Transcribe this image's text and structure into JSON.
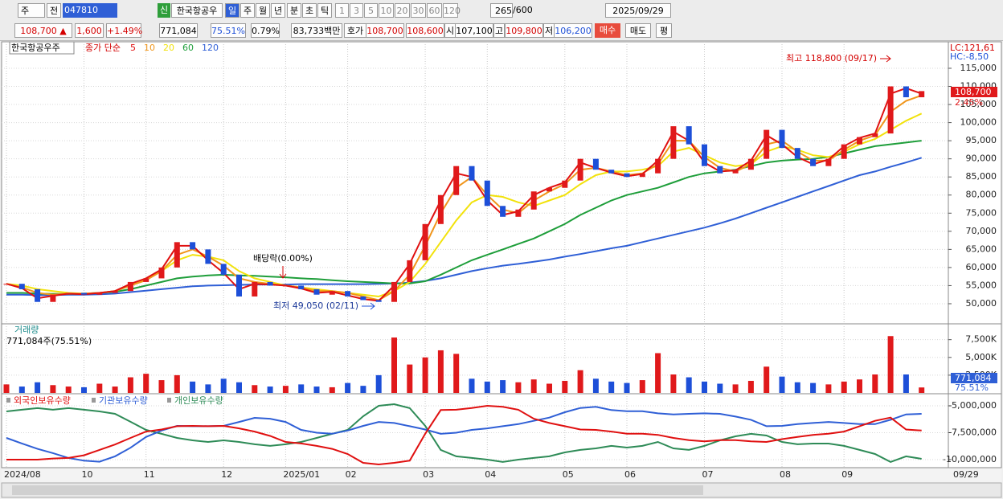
{
  "toolbar": {
    "market": "주",
    "prev": "전",
    "code": "047810",
    "new_badge": "신",
    "name": "한국항공우",
    "periods": [
      "일",
      "주",
      "월",
      "년",
      "분",
      "초",
      "틱"
    ],
    "intervals": [
      "1",
      "3",
      "5",
      "10",
      "20",
      "30",
      "60",
      "120"
    ],
    "count": "265",
    "max_count": "/600",
    "date": "2025/09/29"
  },
  "quote": {
    "price": "108,700 ▲",
    "change": "1,600",
    "change_pct": "+1.49%",
    "volume": "771,084",
    "volume_ratio": "75.51%",
    "turnover_rate": "0.79%",
    "amount": "83,733백만",
    "bid_ask_label": "호가",
    "ask": "108,700",
    "bid": "108,600",
    "open_label": "시",
    "open": "107,100",
    "high_label": "고",
    "high": "109,800",
    "low_label": "저",
    "low": "106,200",
    "buy": "매수",
    "sell": "매도",
    "avg": "평"
  },
  "chart_data": [
    {
      "type": "candlestick",
      "title": "한국항공우주",
      "ma_label": "종가 단순",
      "categories": [
        "2024/08",
        null,
        null,
        null,
        null,
        "10",
        null,
        null,
        null,
        "11",
        null,
        null,
        null,
        null,
        "12",
        null,
        null,
        null,
        "2025/01",
        null,
        null,
        null,
        "02",
        null,
        null,
        null,
        null,
        "03",
        null,
        null,
        null,
        "04",
        null,
        null,
        null,
        null,
        "05",
        null,
        null,
        null,
        "06",
        null,
        null,
        null,
        null,
        "07",
        null,
        null,
        null,
        null,
        "08",
        null,
        null,
        null,
        "09",
        null,
        null,
        null,
        null,
        null
      ],
      "last_date": "09/29",
      "values": [
        55500,
        54000,
        50500,
        52500,
        53000,
        52500,
        53000,
        53500,
        56000,
        57000,
        60000,
        67000,
        65000,
        61000,
        58000,
        52000,
        56000,
        55000,
        55000,
        54000,
        52500,
        53500,
        52000,
        51000,
        50500,
        56000,
        62000,
        72000,
        80000,
        88000,
        84000,
        77000,
        74000,
        76000,
        81000,
        82000,
        84000,
        90000,
        87000,
        86000,
        85000,
        86000,
        90000,
        99000,
        94000,
        88000,
        86000,
        87000,
        90000,
        98000,
        93000,
        90000,
        88000,
        90000,
        94000,
        96000,
        97000,
        110000,
        107000,
        108700
      ],
      "up_color": "#e0191b",
      "down_color": "#1d4fd8",
      "series": [
        {
          "name": "5",
          "color": "#e01010",
          "values": [
            55500,
            54300,
            51500,
            52200,
            52800,
            52600,
            53000,
            53500,
            55500,
            57000,
            59500,
            66000,
            66000,
            62000,
            58500,
            54000,
            55500,
            55300,
            55000,
            54200,
            53000,
            53300,
            52300,
            51300,
            50800,
            55000,
            61000,
            70000,
            78500,
            86000,
            85000,
            78500,
            74500,
            75500,
            80000,
            82000,
            83500,
            89000,
            87500,
            86200,
            85200,
            85800,
            89500,
            97500,
            95000,
            89000,
            86500,
            86800,
            89500,
            96500,
            94000,
            90500,
            88500,
            89800,
            93500,
            95800,
            97000,
            108000,
            109500,
            108000
          ]
        },
        {
          "name": "10",
          "color": "#f0951a",
          "values": [
            55500,
            54500,
            53000,
            52500,
            52800,
            52800,
            53000,
            53500,
            55000,
            56500,
            59000,
            63500,
            65000,
            63000,
            60500,
            57000,
            56000,
            55500,
            55000,
            54500,
            53500,
            53500,
            53000,
            52000,
            51000,
            53500,
            58000,
            66000,
            75000,
            82000,
            85000,
            80000,
            76000,
            75000,
            78500,
            81000,
            83000,
            87000,
            87500,
            86500,
            85500,
            86000,
            88500,
            95000,
            95000,
            90500,
            87500,
            86500,
            88500,
            94000,
            95000,
            92000,
            89500,
            89500,
            92500,
            95000,
            96500,
            103000,
            106000,
            107500
          ]
        },
        {
          "name": "20",
          "color": "#f2e20c",
          "values": [
            55500,
            55000,
            54000,
            53500,
            53000,
            52800,
            53000,
            53500,
            55000,
            57000,
            59000,
            62000,
            63500,
            63000,
            62000,
            59000,
            57000,
            56000,
            55000,
            54500,
            54000,
            53500,
            53000,
            52500,
            52000,
            53500,
            56000,
            61000,
            67000,
            73000,
            78000,
            80000,
            79500,
            78000,
            77000,
            78500,
            80000,
            83000,
            85500,
            86500,
            86500,
            87000,
            88000,
            92000,
            93000,
            91000,
            89000,
            88000,
            88500,
            92000,
            93500,
            92500,
            91000,
            90500,
            92000,
            94000,
            95500,
            98000,
            100500,
            102500
          ]
        },
        {
          "name": "60",
          "color": "#1e9e3a",
          "values": [
            53000,
            53000,
            52800,
            52700,
            52700,
            52800,
            53000,
            53300,
            54000,
            55000,
            56000,
            57000,
            57500,
            57800,
            58000,
            57800,
            57700,
            57500,
            57300,
            57000,
            56800,
            56500,
            56200,
            56000,
            55800,
            55600,
            55600,
            56200,
            58000,
            60000,
            62000,
            63500,
            65000,
            66500,
            68000,
            70000,
            72000,
            74500,
            76500,
            78500,
            80000,
            81000,
            82000,
            83500,
            85000,
            86000,
            86500,
            87000,
            88000,
            89000,
            89500,
            89800,
            90000,
            90500,
            91500,
            92500,
            93500,
            94000,
            94500,
            95000
          ]
        },
        {
          "name": "120",
          "color": "#2f5fd6",
          "values": [
            52500,
            52500,
            52400,
            52400,
            52500,
            52500,
            52600,
            52800,
            53200,
            53600,
            54000,
            54400,
            54800,
            55000,
            55100,
            55200,
            55300,
            55300,
            55300,
            55400,
            55400,
            55400,
            55400,
            55400,
            55500,
            55600,
            55800,
            56300,
            57000,
            58000,
            59000,
            59800,
            60500,
            61000,
            61600,
            62200,
            63000,
            63700,
            64500,
            65300,
            66000,
            67000,
            68000,
            69000,
            70000,
            71000,
            72200,
            73500,
            75000,
            76500,
            78000,
            79500,
            81000,
            82500,
            84000,
            85500,
            86500,
            87800,
            89000,
            90300
          ]
        }
      ],
      "ylim": [
        44670,
        121650
      ],
      "yticks": [
        {
          "value": 50000,
          "label": "50,000"
        },
        {
          "value": 55000,
          "label": "55,000"
        },
        {
          "value": 60000,
          "label": "60,000"
        },
        {
          "value": 65000,
          "label": "65,000"
        },
        {
          "value": 70000,
          "label": "70,000"
        },
        {
          "value": 75000,
          "label": "75,000"
        },
        {
          "value": 80000,
          "label": "80,000"
        },
        {
          "value": 85000,
          "label": "85,000"
        },
        {
          "value": 90000,
          "label": "90,000"
        },
        {
          "value": 95000,
          "label": "95,000"
        },
        {
          "value": 100000,
          "label": "100,000"
        },
        {
          "value": 105000,
          "label": "105,000"
        },
        {
          "value": 110000,
          "label": "110,000"
        },
        {
          "value": 115000,
          "label": "115,000"
        }
      ],
      "grid": true,
      "lc_label": "LC:121,61",
      "hc_label": "HC:-8,50",
      "last_label": "108,700",
      "last_pct": "2.45%",
      "annotations": [
        "최고 118,800 (09/17)",
        "최저 49,050 (02/11)",
        "배당락(0.00%)"
      ]
    },
    {
      "type": "bar",
      "title": "거래량",
      "subtitle": "771,084주(75.51%)",
      "values": [
        1200000,
        900000,
        1500000,
        1100000,
        900000,
        800000,
        1300000,
        900000,
        2200000,
        2700000,
        1800000,
        2500000,
        1600000,
        1200000,
        2000000,
        1500000,
        1100000,
        900000,
        1000000,
        1200000,
        900000,
        800000,
        1400000,
        1000000,
        2500000,
        7800000,
        4000000,
        5000000,
        6000000,
        5500000,
        2000000,
        1600000,
        1800000,
        1500000,
        1900000,
        1300000,
        1700000,
        3200000,
        2000000,
        1600000,
        1400000,
        1800000,
        5600000,
        2600000,
        2200000,
        1600000,
        1300000,
        1200000,
        1700000,
        3700000,
        2300000,
        1500000,
        1400000,
        1200000,
        1600000,
        1900000,
        2600000,
        8000000,
        2600000,
        771084
      ],
      "ylim": [
        0,
        9500000
      ],
      "yticks": [
        {
          "value": 2500000,
          "label": "2,500K"
        },
        {
          "value": 5000000,
          "label": "5,000K"
        },
        {
          "value": 7500000,
          "label": "7,500K"
        }
      ],
      "last_label": "771,084",
      "last_pct": "75.51%"
    },
    {
      "type": "line",
      "series": [
        {
          "name": "외국인보유수량",
          "color": "#e01010",
          "values": [
            -10000000,
            -10000000,
            -10000000,
            -9900000,
            -9850000,
            -9600000,
            -9100000,
            -8600000,
            -7990000,
            -7400000,
            -7200000,
            -6900000,
            -6870000,
            -6900000,
            -6870000,
            -7100000,
            -7400000,
            -7800000,
            -8360000,
            -8500000,
            -8730000,
            -9000000,
            -9480000,
            -10300000,
            -10450000,
            -10300000,
            -10100000,
            -7600000,
            -5400000,
            -5370000,
            -5200000,
            -5000000,
            -5100000,
            -5370000,
            -6200000,
            -6600000,
            -6900000,
            -7200000,
            -7240000,
            -7400000,
            -7600000,
            -7600000,
            -7700000,
            -7990000,
            -8200000,
            -8300000,
            -8200000,
            -8200000,
            -8300000,
            -8360000,
            -8100000,
            -7900000,
            -7700000,
            -7600000,
            -7400000,
            -6900000,
            -6400000,
            -6100000,
            -7200000,
            -7300000
          ]
        },
        {
          "name": "기관보유수량",
          "color": "#2f5fd6",
          "values": [
            -7990000,
            -8500000,
            -9000000,
            -9400000,
            -9850000,
            -10100000,
            -10200000,
            -9700000,
            -8900000,
            -7900000,
            -7300000,
            -6870000,
            -6900000,
            -6900000,
            -6870000,
            -6500000,
            -6120000,
            -6200000,
            -6500000,
            -7240000,
            -7500000,
            -7600000,
            -7300000,
            -6870000,
            -6500000,
            -6600000,
            -6900000,
            -7200000,
            -7610000,
            -7500000,
            -7240000,
            -7100000,
            -6900000,
            -6700000,
            -6400000,
            -6100000,
            -5600000,
            -5200000,
            -5100000,
            -5400000,
            -5500000,
            -5500000,
            -5700000,
            -5800000,
            -5750000,
            -5700000,
            -5750000,
            -6000000,
            -6300000,
            -6900000,
            -6870000,
            -6700000,
            -6600000,
            -6500000,
            -6600000,
            -6700000,
            -6700000,
            -6300000,
            -5800000,
            -5750000
          ]
        },
        {
          "name": "개인보유수량",
          "color": "#2e8b57",
          "values": [
            -5520000,
            -5370000,
            -5220000,
            -5370000,
            -5220000,
            -5370000,
            -5520000,
            -5750000,
            -6490000,
            -7240000,
            -7610000,
            -7990000,
            -8210000,
            -8360000,
            -8210000,
            -8360000,
            -8580000,
            -8730000,
            -8580000,
            -8360000,
            -7990000,
            -7610000,
            -7240000,
            -5970000,
            -5000000,
            -4850000,
            -5220000,
            -6870000,
            -9100000,
            -9700000,
            -9850000,
            -10000000,
            -10220000,
            -10000000,
            -9850000,
            -9700000,
            -9330000,
            -9100000,
            -8960000,
            -8730000,
            -8880000,
            -8730000,
            -8360000,
            -8960000,
            -9100000,
            -8730000,
            -8210000,
            -7840000,
            -7610000,
            -7760000,
            -8360000,
            -8580000,
            -8510000,
            -8510000,
            -8730000,
            -9100000,
            -9480000,
            -10220000,
            -9700000,
            -9930000
          ]
        }
      ],
      "ylim": [
        -10750000,
        -4030000
      ],
      "yticks": [
        {
          "value": -10000000,
          "label": "-10,000,000"
        },
        {
          "value": -7500000,
          "label": "-7,500,000"
        },
        {
          "value": -5000000,
          "label": "-5,000,000"
        }
      ]
    }
  ]
}
